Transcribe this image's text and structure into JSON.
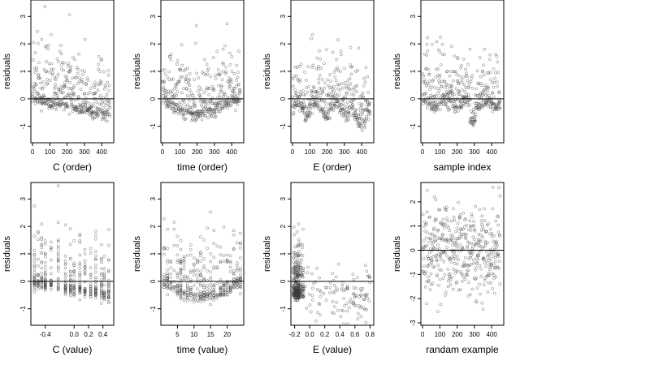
{
  "chart_data": [
    {
      "type": "scatter",
      "xlabel": "C (order)",
      "ylabel": "residuals",
      "x_ticks": [
        0,
        100,
        200,
        300,
        400
      ],
      "y_ticks": [
        -1,
        0,
        1,
        2,
        3
      ],
      "xlim": [
        -10,
        470
      ],
      "ylim": [
        -1.6,
        3.6
      ],
      "reference_line": 0,
      "pattern": "order_smooth",
      "points": []
    },
    {
      "type": "scatter",
      "xlabel": "time (order)",
      "ylabel": "residuals",
      "x_ticks": [
        0,
        100,
        200,
        300,
        400
      ],
      "y_ticks": [
        -1,
        0,
        1,
        2,
        3
      ],
      "xlim": [
        -10,
        470
      ],
      "ylim": [
        -1.6,
        3.6
      ],
      "reference_line": 0,
      "pattern": "order_u",
      "points": []
    },
    {
      "type": "scatter",
      "xlabel": "E (order)",
      "ylabel": "residuals",
      "x_ticks": [
        0,
        100,
        200,
        300,
        400
      ],
      "y_ticks": [
        -1,
        0,
        1,
        2,
        3
      ],
      "xlim": [
        -10,
        470
      ],
      "ylim": [
        -1.6,
        3.6
      ],
      "reference_line": 0,
      "pattern": "order_e",
      "points": []
    },
    {
      "type": "scatter",
      "xlabel": "sample index",
      "ylabel": "residuals",
      "x_ticks": [
        0,
        100,
        200,
        300,
        400
      ],
      "y_ticks": [
        -1,
        0,
        1,
        2,
        3
      ],
      "xlim": [
        -10,
        470
      ],
      "ylim": [
        -1.6,
        3.6
      ],
      "reference_line": 0,
      "pattern": "index_wave",
      "points": []
    },
    {
      "type": "scatter",
      "xlabel": "C (value)",
      "ylabel": "residuals",
      "x_ticks": [
        -0.4,
        0.0,
        0.2,
        0.4
      ],
      "x_tick_labels": [
        "-0.4",
        "0.0",
        "0.2",
        "0.4"
      ],
      "y_ticks": [
        -1,
        0,
        1,
        2,
        3
      ],
      "xlim": [
        -0.6,
        0.55
      ],
      "ylim": [
        -1.6,
        3.6
      ],
      "reference_line": 0,
      "pattern": "value_c",
      "points": []
    },
    {
      "type": "scatter",
      "xlabel": "time (value)",
      "ylabel": "residuals",
      "x_ticks": [
        5,
        10,
        15,
        20
      ],
      "y_ticks": [
        -1,
        0,
        1,
        2,
        3
      ],
      "xlim": [
        0,
        25
      ],
      "ylim": [
        -1.6,
        3.6
      ],
      "reference_line": 0,
      "pattern": "value_time",
      "points": []
    },
    {
      "type": "scatter",
      "xlabel": "E (value)",
      "ylabel": "residuals",
      "x_ticks": [
        -0.2,
        0.0,
        0.2,
        0.4,
        0.6,
        0.8
      ],
      "x_tick_labels": [
        "-0.2",
        "0.0",
        "0.2",
        "0.4",
        "0.6",
        "0.8"
      ],
      "y_ticks": [
        -1,
        0,
        1,
        2,
        3
      ],
      "xlim": [
        -0.25,
        0.85
      ],
      "ylim": [
        -1.6,
        3.6
      ],
      "reference_line": 0,
      "pattern": "value_e",
      "points": []
    },
    {
      "type": "scatter",
      "xlabel": "randam example",
      "ylabel": "residuals",
      "x_ticks": [
        0,
        100,
        200,
        300,
        400
      ],
      "y_ticks": [
        -3,
        -2,
        -1,
        0,
        1,
        2
      ],
      "xlim": [
        -10,
        470
      ],
      "ylim": [
        -3.1,
        2.8
      ],
      "reference_line": 0,
      "pattern": "random",
      "points": []
    }
  ],
  "colors": {
    "point_stroke": "#3a3a3a",
    "axis": "#000000",
    "reference_line": "#000000",
    "background": "#ffffff"
  }
}
